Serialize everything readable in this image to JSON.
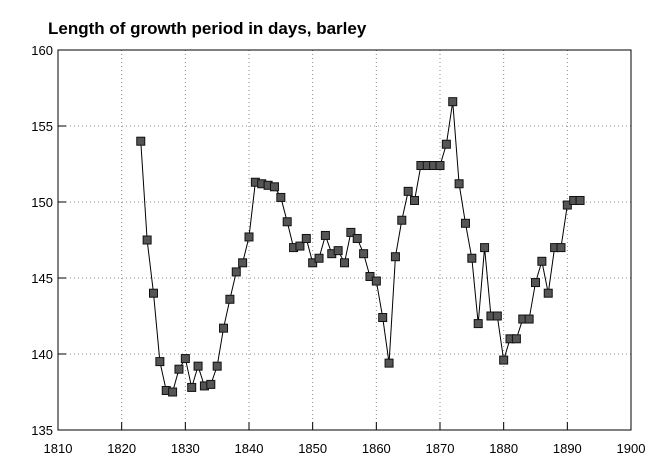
{
  "chart_data": {
    "type": "line",
    "title": "Length of growth period in days, barley",
    "x": [
      1823,
      1824,
      1825,
      1826,
      1827,
      1828,
      1829,
      1830,
      1831,
      1832,
      1833,
      1834,
      1835,
      1836,
      1837,
      1838,
      1839,
      1840,
      1841,
      1842,
      1843,
      1844,
      1845,
      1846,
      1847,
      1848,
      1849,
      1850,
      1851,
      1852,
      1853,
      1854,
      1855,
      1856,
      1857,
      1858,
      1859,
      1860,
      1861,
      1862,
      1863,
      1864,
      1865,
      1866,
      1867,
      1868,
      1869,
      1870,
      1871,
      1872,
      1873,
      1874,
      1875,
      1876,
      1877,
      1878,
      1879,
      1880,
      1881,
      1882,
      1883,
      1884,
      1885,
      1886,
      1887,
      1888,
      1889,
      1890,
      1891,
      1892
    ],
    "series": [
      {
        "color": "#555555",
        "values": [
          154.0,
          147.5,
          144.0,
          139.5,
          137.6,
          137.5,
          139.0,
          139.7,
          137.8,
          139.2,
          137.9,
          138.0,
          139.2,
          141.7,
          143.6,
          145.4,
          146.0,
          147.7,
          151.3,
          151.2,
          151.1,
          151.0,
          150.3,
          148.7,
          147.0,
          147.1,
          147.6,
          146.0,
          146.3,
          147.8,
          146.6,
          146.8,
          146.0,
          148.0,
          147.6,
          146.6,
          145.1,
          144.8,
          142.4,
          139.4,
          146.4,
          148.8,
          150.7,
          150.1,
          152.4,
          152.4,
          152.4,
          152.4,
          153.8,
          156.6,
          151.2,
          148.6,
          146.3,
          142.0,
          147.0,
          142.5,
          142.5,
          139.6,
          141.0,
          141.0,
          142.3,
          142.3,
          144.7,
          146.1,
          144.0,
          147.0,
          147.0,
          149.8,
          150.1,
          150.1
        ]
      }
    ],
    "xlim": [
      1810,
      1900
    ],
    "xticks": [
      1810,
      1820,
      1830,
      1840,
      1850,
      1860,
      1870,
      1880,
      1890,
      1900
    ],
    "ylim": [
      135,
      160
    ],
    "yticks": [
      135,
      140,
      145,
      150,
      155,
      160
    ],
    "grid": true
  }
}
